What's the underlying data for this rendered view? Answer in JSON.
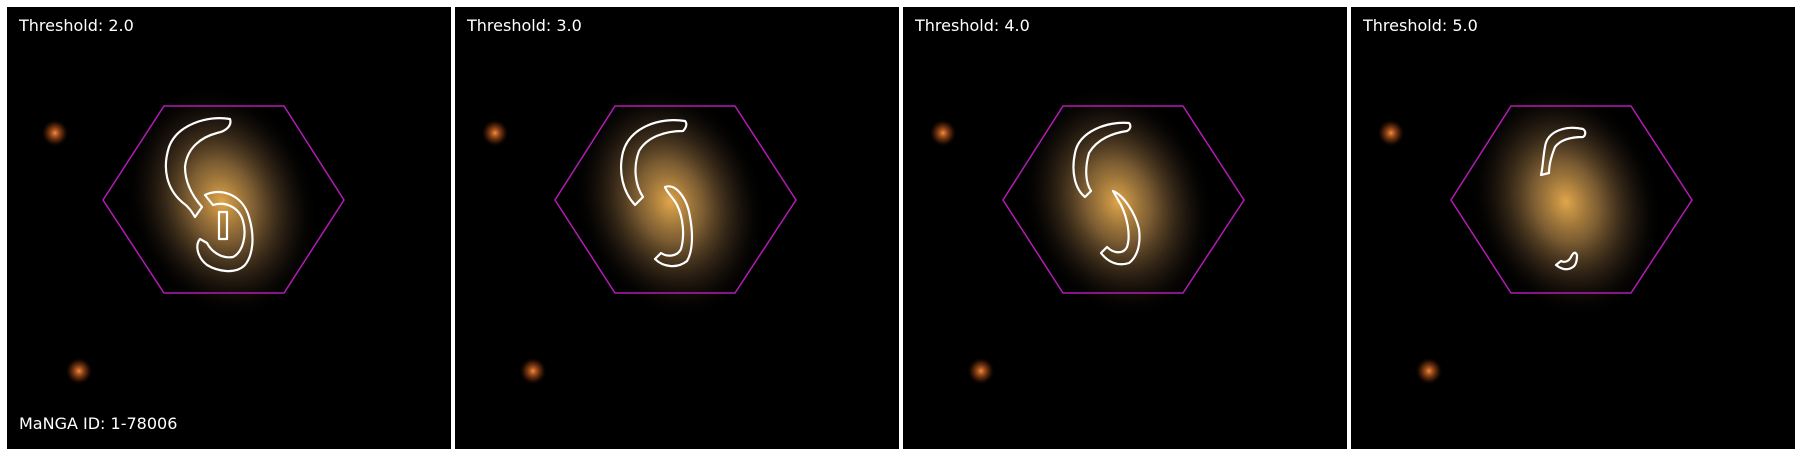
{
  "panels": [
    {
      "threshold_label": "Threshold: 2.0",
      "threshold": 2.0
    },
    {
      "threshold_label": "Threshold: 3.0",
      "threshold": 3.0
    },
    {
      "threshold_label": "Threshold: 4.0",
      "threshold": 4.0
    },
    {
      "threshold_label": "Threshold: 5.0",
      "threshold": 5.0
    }
  ],
  "manga_id_label": "MaNGA ID: 1-78006",
  "colors": {
    "hexagon": "#b31bb3",
    "contour": "#ffffff",
    "background": "#000000"
  }
}
